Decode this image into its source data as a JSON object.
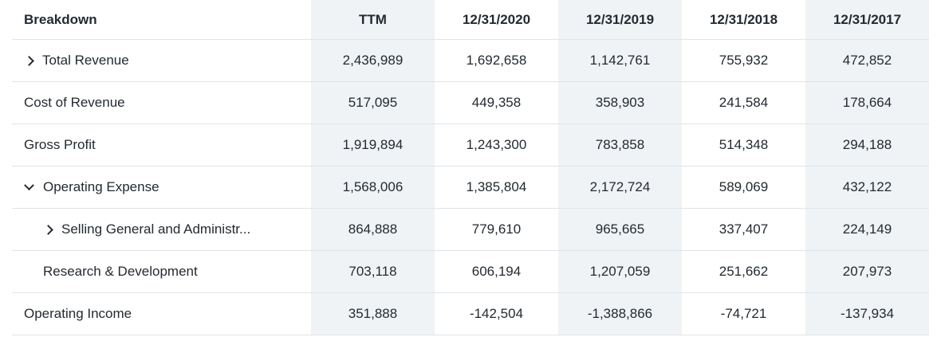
{
  "table": {
    "header": {
      "label": "Breakdown",
      "columns": [
        "TTM",
        "12/31/2020",
        "12/31/2019",
        "12/31/2018",
        "12/31/2017"
      ]
    },
    "rows": [
      {
        "label": "Total Revenue",
        "toggle": "collapsed",
        "level": 0,
        "values": [
          "2,436,989",
          "1,692,658",
          "1,142,761",
          "755,932",
          "472,852"
        ]
      },
      {
        "label": "Cost of Revenue",
        "toggle": "none",
        "level": 0,
        "values": [
          "517,095",
          "449,358",
          "358,903",
          "241,584",
          "178,664"
        ]
      },
      {
        "label": "Gross Profit",
        "toggle": "none",
        "level": 0,
        "values": [
          "1,919,894",
          "1,243,300",
          "783,858",
          "514,348",
          "294,188"
        ]
      },
      {
        "label": "Operating Expense",
        "toggle": "expanded",
        "level": 0,
        "values": [
          "1,568,006",
          "1,385,804",
          "2,172,724",
          "589,069",
          "432,122"
        ]
      },
      {
        "label": "Selling General and Administr...",
        "toggle": "collapsed",
        "level": 1,
        "values": [
          "864,888",
          "779,610",
          "965,665",
          "337,407",
          "224,149"
        ]
      },
      {
        "label": "Research & Development",
        "toggle": "none",
        "level": 1,
        "values": [
          "703,118",
          "606,194",
          "1,207,059",
          "251,662",
          "207,973"
        ]
      },
      {
        "label": "Operating Income",
        "toggle": "none",
        "level": 0,
        "values": [
          "351,888",
          "-142,504",
          "-1,388,866",
          "-74,721",
          "-137,934"
        ]
      }
    ]
  },
  "icons": {
    "collapsed": "chevron-right-icon",
    "expanded": "chevron-down-icon"
  },
  "colors": {
    "shaded_column": "#f0f3f5",
    "divider": "#e0e4e9",
    "text": "#232a31"
  }
}
